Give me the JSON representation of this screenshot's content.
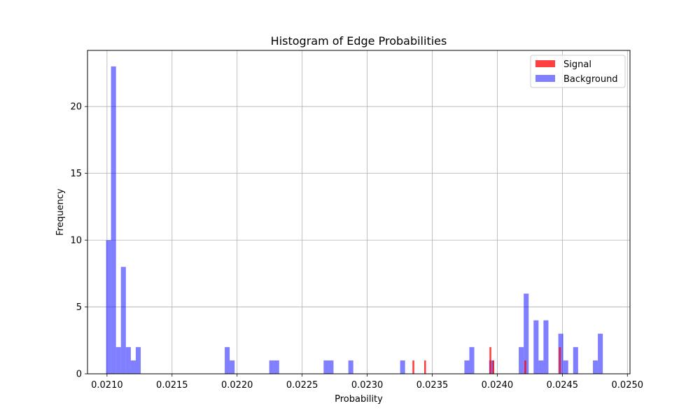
{
  "chart_data": {
    "type": "bar",
    "title": "Histogram of Edge Probabilities",
    "xlabel": "Probability",
    "ylabel": "Frequency",
    "xlim": [
      0.02085,
      0.02502
    ],
    "ylim": [
      0,
      24.2
    ],
    "grid": true,
    "legend_position": "top-right",
    "x_ticks": [
      0.021,
      0.0215,
      0.022,
      0.0225,
      0.023,
      0.0235,
      0.024,
      0.0245,
      0.025
    ],
    "x_tick_labels": [
      "0.0210",
      "0.0215",
      "0.0220",
      "0.0225",
      "0.0230",
      "0.0235",
      "0.0240",
      "0.0245",
      "0.0250"
    ],
    "y_ticks": [
      0,
      5,
      10,
      15,
      20
    ],
    "y_tick_labels": [
      "0",
      "5",
      "10",
      "15",
      "20"
    ],
    "series": [
      {
        "name": "Signal",
        "color": "#ff0000",
        "opacity": 0.75,
        "bins": [
          {
            "x0": 0.023348,
            "x1": 0.023362,
            "count": 1
          },
          {
            "x0": 0.023438,
            "x1": 0.023452,
            "count": 1
          },
          {
            "x0": 0.02394,
            "x1": 0.023954,
            "count": 2
          },
          {
            "x0": 0.023962,
            "x1": 0.023976,
            "count": 1
          },
          {
            "x0": 0.024208,
            "x1": 0.024222,
            "count": 1
          },
          {
            "x0": 0.024474,
            "x1": 0.024488,
            "count": 2
          }
        ]
      },
      {
        "name": "Background",
        "color": "#0000ff",
        "opacity": 0.5,
        "bins": [
          {
            "x0": 0.020993,
            "x1": 0.021031,
            "count": 10
          },
          {
            "x0": 0.021031,
            "x1": 0.021069,
            "count": 23
          },
          {
            "x0": 0.021069,
            "x1": 0.021107,
            "count": 2
          },
          {
            "x0": 0.021107,
            "x1": 0.021145,
            "count": 8
          },
          {
            "x0": 0.021145,
            "x1": 0.021183,
            "count": 2
          },
          {
            "x0": 0.021183,
            "x1": 0.021221,
            "count": 1
          },
          {
            "x0": 0.021221,
            "x1": 0.021259,
            "count": 2
          },
          {
            "x0": 0.021905,
            "x1": 0.021943,
            "count": 2
          },
          {
            "x0": 0.021943,
            "x1": 0.021981,
            "count": 1
          },
          {
            "x0": 0.022247,
            "x1": 0.022285,
            "count": 1
          },
          {
            "x0": 0.022285,
            "x1": 0.022323,
            "count": 1
          },
          {
            "x0": 0.022665,
            "x1": 0.022703,
            "count": 1
          },
          {
            "x0": 0.022703,
            "x1": 0.022741,
            "count": 1
          },
          {
            "x0": 0.022855,
            "x1": 0.022893,
            "count": 1
          },
          {
            "x0": 0.023253,
            "x1": 0.023291,
            "count": 1
          },
          {
            "x0": 0.023747,
            "x1": 0.023785,
            "count": 1
          },
          {
            "x0": 0.023785,
            "x1": 0.023823,
            "count": 2
          },
          {
            "x0": 0.023937,
            "x1": 0.023975,
            "count": 1
          },
          {
            "x0": 0.024165,
            "x1": 0.024203,
            "count": 2
          },
          {
            "x0": 0.024203,
            "x1": 0.024241,
            "count": 6
          },
          {
            "x0": 0.024279,
            "x1": 0.024317,
            "count": 4
          },
          {
            "x0": 0.024317,
            "x1": 0.024355,
            "count": 1
          },
          {
            "x0": 0.024355,
            "x1": 0.024393,
            "count": 4
          },
          {
            "x0": 0.024469,
            "x1": 0.024507,
            "count": 3
          },
          {
            "x0": 0.024507,
            "x1": 0.024545,
            "count": 1
          },
          {
            "x0": 0.024583,
            "x1": 0.024621,
            "count": 2
          },
          {
            "x0": 0.024735,
            "x1": 0.024773,
            "count": 1
          },
          {
            "x0": 0.024773,
            "x1": 0.024811,
            "count": 3
          }
        ]
      }
    ]
  }
}
